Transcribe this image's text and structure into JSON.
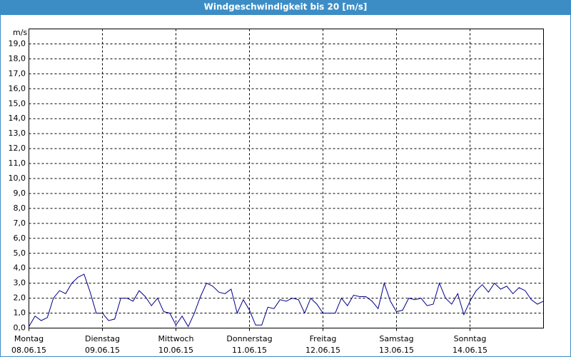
{
  "chart_data": {
    "type": "line",
    "title": "Windgeschwindigkeit bis 20 [m/s]",
    "y_unit": "m/s",
    "ylim": [
      0,
      20
    ],
    "yticks": [
      {
        "value": 0,
        "label": "0,0"
      },
      {
        "value": 1,
        "label": "1,0"
      },
      {
        "value": 2,
        "label": "2,0"
      },
      {
        "value": 3,
        "label": "3,0"
      },
      {
        "value": 4,
        "label": "4,0"
      },
      {
        "value": 5,
        "label": "5,0"
      },
      {
        "value": 6,
        "label": "6,0"
      },
      {
        "value": 7,
        "label": "7,0"
      },
      {
        "value": 8,
        "label": "8,0"
      },
      {
        "value": 9,
        "label": "9,0"
      },
      {
        "value": 10,
        "label": "10,0"
      },
      {
        "value": 11,
        "label": "11,0"
      },
      {
        "value": 12,
        "label": "12,0"
      },
      {
        "value": 13,
        "label": "13,0"
      },
      {
        "value": 14,
        "label": "14,0"
      },
      {
        "value": 15,
        "label": "15,0"
      },
      {
        "value": 16,
        "label": "16,0"
      },
      {
        "value": 17,
        "label": "17,0"
      },
      {
        "value": 18,
        "label": "18,0"
      },
      {
        "value": 19,
        "label": "19,0"
      }
    ],
    "days": [
      {
        "weekday": "Montag",
        "date": "08.06.15"
      },
      {
        "weekday": "Dienstag",
        "date": "09.06.15"
      },
      {
        "weekday": "Mittwoch",
        "date": "10.06.15"
      },
      {
        "weekday": "Donnerstag",
        "date": "11.06.15"
      },
      {
        "weekday": "Freitag",
        "date": "12.06.15"
      },
      {
        "weekday": "Samstag",
        "date": "13.06.15"
      },
      {
        "weekday": "Sonntag",
        "date": "14.06.15"
      }
    ],
    "grid": true,
    "color": "#00008b",
    "values": [
      0.1,
      0.8,
      0.5,
      0.7,
      2.0,
      2.5,
      2.3,
      3.0,
      3.4,
      3.6,
      2.4,
      1.0,
      1.0,
      0.5,
      0.6,
      2.0,
      2.0,
      1.8,
      2.5,
      2.1,
      1.5,
      2.0,
      1.1,
      1.0,
      0.2,
      0.8,
      0.1,
      1.0,
      2.1,
      3.0,
      2.8,
      2.4,
      2.3,
      2.6,
      1.0,
      1.9,
      1.2,
      0.2,
      0.2,
      1.4,
      1.3,
      1.9,
      1.8,
      2.0,
      1.9,
      1.0,
      2.0,
      1.6,
      1.0,
      1.0,
      1.0,
      2.0,
      1.5,
      2.2,
      2.1,
      2.1,
      1.8,
      1.3,
      3.0,
      1.8,
      1.1,
      1.2,
      2.0,
      1.9,
      2.0,
      1.5,
      1.6,
      3.0,
      2.0,
      1.6,
      2.3,
      0.9,
      1.8,
      2.5,
      2.9,
      2.4,
      3.0,
      2.6,
      2.8,
      2.3,
      2.7,
      2.5,
      1.9,
      1.6,
      1.8
    ]
  }
}
